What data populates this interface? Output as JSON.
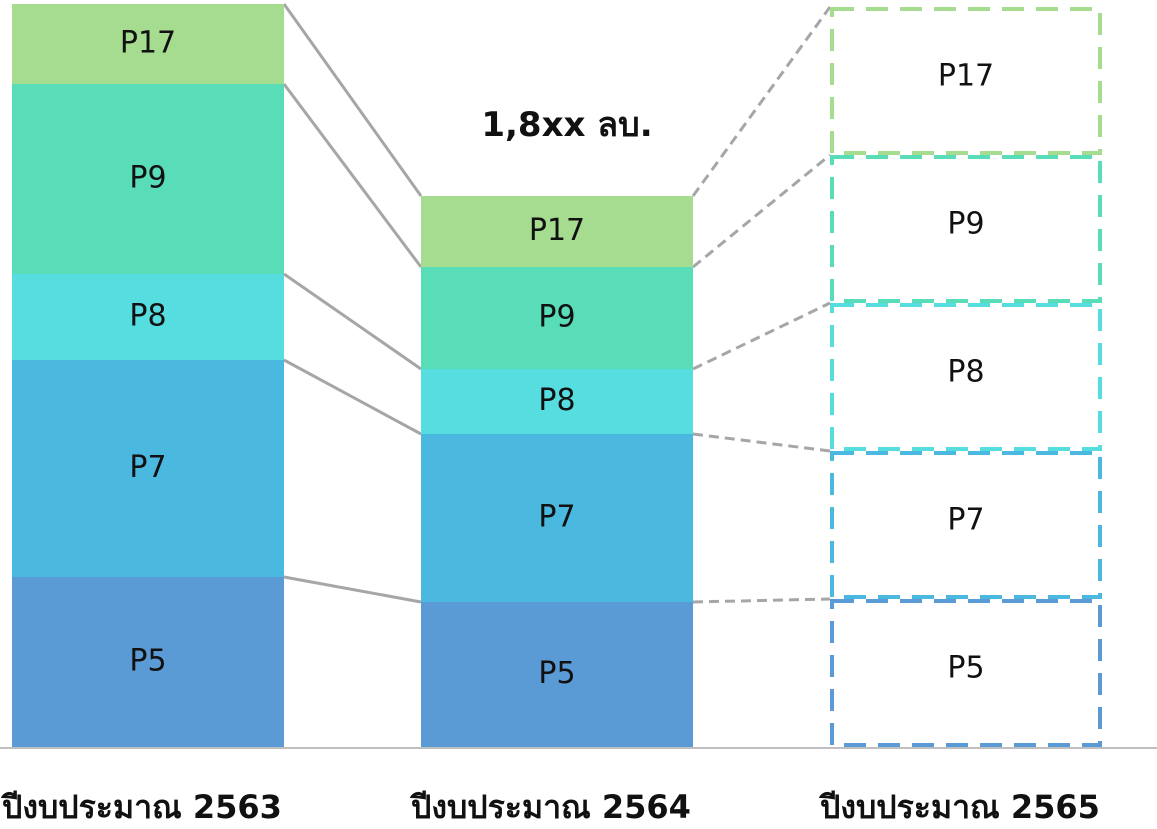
{
  "chart_data": {
    "type": "bar",
    "stacked": true,
    "categories": [
      "ปีงบประมาณ 2563",
      "ปีงบประมาณ 2564",
      "ปีงบประมาณ 2565"
    ],
    "series": [
      {
        "name": "P5",
        "color": "#5B9BD5",
        "values": [
          170,
          145,
          148
        ]
      },
      {
        "name": "P7",
        "color": "#4BB8E0",
        "values": [
          217,
          168,
          148
        ]
      },
      {
        "name": "P8",
        "color": "#55DDE0",
        "values": [
          86,
          65,
          148
        ]
      },
      {
        "name": "P9",
        "color": "#58DDB8",
        "values": [
          190,
          102,
          148
        ]
      },
      {
        "name": "P17",
        "color": "#A5DC90",
        "values": [
          80,
          71,
          148
        ]
      }
    ],
    "projected_category": "ปีงบประมาณ 2565",
    "annotation": {
      "category": "ปีงบประมาณ 2564",
      "text": "1,8xx ลบ."
    },
    "ylim": [
      0,
      742
    ],
    "grid": false,
    "xlabel": "",
    "ylabel": "",
    "connector_color": "#A6A6A6",
    "axis_color": "#BFBFBF"
  }
}
